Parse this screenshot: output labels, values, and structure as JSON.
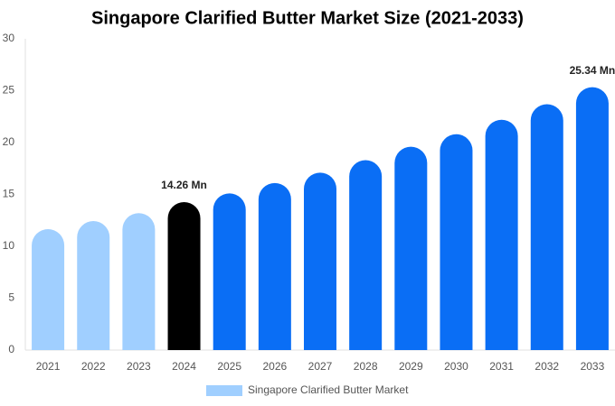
{
  "chart_data": {
    "type": "bar",
    "title": "Singapore Clarified Butter Market Size (2021-2033)",
    "categories": [
      "2021",
      "2022",
      "2023",
      "2024",
      "2025",
      "2026",
      "2027",
      "2028",
      "2029",
      "2030",
      "2031",
      "2032",
      "2033"
    ],
    "series": [
      {
        "name": "Singapore Clarified Butter Market",
        "color": "#a0cfff",
        "values": [
          11.65,
          12.43,
          13.2,
          14.26,
          15.1,
          16.1,
          17.1,
          18.3,
          19.6,
          20.8,
          22.2,
          23.7,
          25.34
        ],
        "value_labels": [
          null,
          null,
          null,
          "14.26 Mn",
          null,
          null,
          null,
          null,
          null,
          null,
          null,
          null,
          "25.34 Mn"
        ],
        "colors": [
          "#a0cfff",
          "#a0cfff",
          "#a0cfff",
          "#000000",
          "#0a6ef5",
          "#0a6ef5",
          "#0a6ef5",
          "#0a6ef5",
          "#0a6ef5",
          "#0a6ef5",
          "#0a6ef5",
          "#0a6ef5",
          "#0a6ef5"
        ]
      }
    ],
    "ylim": [
      0,
      30
    ],
    "yticks": [
      0,
      5,
      10,
      15,
      20,
      25,
      30
    ],
    "grid": false,
    "legend": "bottom"
  }
}
